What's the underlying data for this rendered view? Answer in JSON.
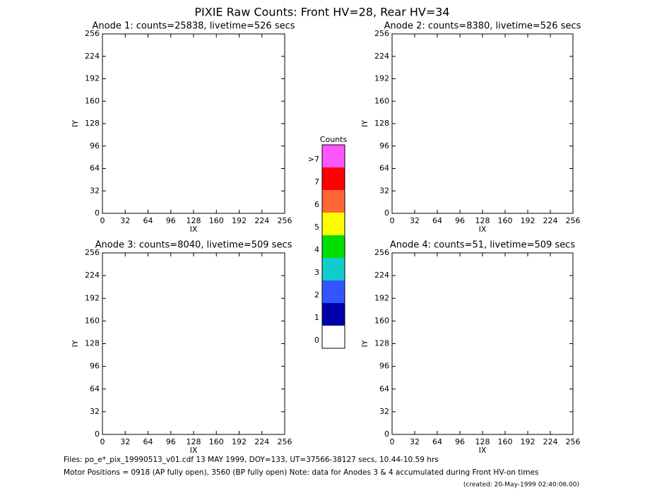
{
  "title": "PIXIE Raw Counts:  Front HV=28, Rear HV=34",
  "chart_data": [
    {
      "type": "heatmap",
      "title": "Anode 1: counts=25838, livetime=526 secs",
      "xlabel": "IX",
      "ylabel": "IY",
      "xlim": [
        0,
        256
      ],
      "ylim": [
        0,
        256
      ],
      "xticks": [
        0,
        32,
        64,
        96,
        128,
        160,
        192,
        224,
        256
      ],
      "yticks": [
        0,
        32,
        64,
        96,
        128,
        160,
        192,
        224,
        256
      ]
    },
    {
      "type": "heatmap",
      "title": "Anode 2: counts=8380, livetime=526 secs",
      "xlabel": "IX",
      "ylabel": "IY",
      "xlim": [
        0,
        256
      ],
      "ylim": [
        0,
        256
      ],
      "xticks": [
        0,
        32,
        64,
        96,
        128,
        160,
        192,
        224,
        256
      ],
      "yticks": [
        0,
        32,
        64,
        96,
        128,
        160,
        192,
        224,
        256
      ]
    },
    {
      "type": "heatmap",
      "title": "Anode 3: counts=8040, livetime=509 secs",
      "xlabel": "IX",
      "ylabel": "IY",
      "xlim": [
        0,
        256
      ],
      "ylim": [
        0,
        256
      ],
      "xticks": [
        0,
        32,
        64,
        96,
        128,
        160,
        192,
        224,
        256
      ],
      "yticks": [
        0,
        32,
        64,
        96,
        128,
        160,
        192,
        224,
        256
      ]
    },
    {
      "type": "heatmap",
      "title": "Anode 4: counts=51, livetime=509 secs",
      "xlabel": "IX",
      "ylabel": "IY",
      "xlim": [
        0,
        256
      ],
      "ylim": [
        0,
        256
      ],
      "xticks": [
        0,
        32,
        64,
        96,
        128,
        160,
        192,
        224,
        256
      ],
      "yticks": [
        0,
        32,
        64,
        96,
        128,
        160,
        192,
        224,
        256
      ]
    }
  ],
  "colorbar": {
    "title": "Counts",
    "levels": [
      {
        "label": ">7",
        "color": "#ff55ff"
      },
      {
        "label": "7",
        "color": "#ff0000"
      },
      {
        "label": "6",
        "color": "#ff6633"
      },
      {
        "label": "5",
        "color": "#ffff00"
      },
      {
        "label": "4",
        "color": "#00dd00"
      },
      {
        "label": "3",
        "color": "#11cccc"
      },
      {
        "label": "2",
        "color": "#3355ff"
      },
      {
        "label": "1",
        "color": "#0000aa"
      },
      {
        "label": "0",
        "color": "#ffffff"
      }
    ]
  },
  "footer": [
    "Files: po_e*_pix_19990513_v01.cdf    13 MAY 1999, DOY=133, UT=37566-38127 secs, 10.44-10.59 hrs",
    "Motor Positions = 0918 (AP fully open), 3560 (BP fully open)    Note: data for Anodes 3 & 4 accumulated during Front HV-on times",
    "(created: 20-May-1999 02:40:06.00)"
  ]
}
